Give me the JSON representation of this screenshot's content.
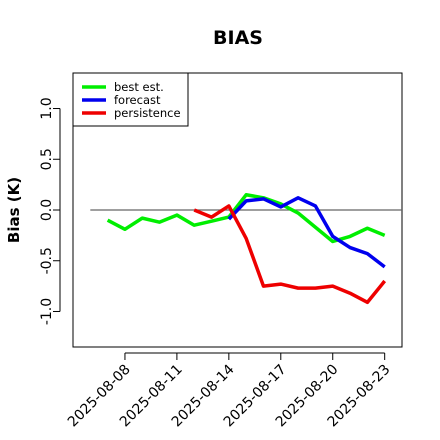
{
  "chart_data": {
    "type": "line",
    "title": "BIAS",
    "xlabel": "",
    "ylabel": "Bias (K)",
    "ylim": [
      -1.35,
      1.35
    ],
    "xlim": [
      "2025-08-05",
      "2025-08-24"
    ],
    "grid": false,
    "legend_position": "top-left",
    "zero_line": true,
    "y_ticks": [
      "-1.0",
      "-0.5",
      "0.0",
      "0.5",
      "1.0"
    ],
    "y_tick_values": [
      -1.0,
      -0.5,
      0.0,
      0.5,
      1.0
    ],
    "x_ticks": [
      "2025-08-08",
      "2025-08-11",
      "2025-08-14",
      "2025-08-17",
      "2025-08-20",
      "2025-08-23"
    ],
    "highlighted_x_tick": "2025-08-14",
    "highlight_color": "#228B22",
    "series": [
      {
        "name": "best est.",
        "color": "#00ee00",
        "points": [
          [
            "2025-08-07",
            -0.1
          ],
          [
            "2025-08-08",
            -0.19
          ],
          [
            "2025-08-09",
            -0.08
          ],
          [
            "2025-08-10",
            -0.12
          ],
          [
            "2025-08-11",
            -0.05
          ],
          [
            "2025-08-12",
            -0.15
          ],
          [
            "2025-08-13",
            -0.11
          ],
          [
            "2025-08-14",
            -0.07
          ],
          [
            "2025-08-15",
            0.15
          ],
          [
            "2025-08-16",
            0.12
          ],
          [
            "2025-08-17",
            0.06
          ],
          [
            "2025-08-18",
            -0.03
          ],
          [
            "2025-08-19",
            -0.17
          ],
          [
            "2025-08-20",
            -0.31
          ],
          [
            "2025-08-21",
            -0.26
          ],
          [
            "2025-08-22",
            -0.18
          ],
          [
            "2025-08-23",
            -0.25
          ]
        ]
      },
      {
        "name": "forecast",
        "color": "#0000ee",
        "points": [
          [
            "2025-08-14",
            -0.09
          ],
          [
            "2025-08-15",
            0.09
          ],
          [
            "2025-08-16",
            0.11
          ],
          [
            "2025-08-17",
            0.03
          ],
          [
            "2025-08-18",
            0.12
          ],
          [
            "2025-08-19",
            0.04
          ],
          [
            "2025-08-20",
            -0.26
          ],
          [
            "2025-08-21",
            -0.37
          ],
          [
            "2025-08-22",
            -0.43
          ],
          [
            "2025-08-23",
            -0.56
          ]
        ]
      },
      {
        "name": "persistence",
        "color": "#ee0000",
        "points": [
          [
            "2025-08-12",
            0.0
          ],
          [
            "2025-08-13",
            -0.07
          ],
          [
            "2025-08-14",
            0.04
          ],
          [
            "2025-08-15",
            -0.28
          ],
          [
            "2025-08-16",
            -0.75
          ],
          [
            "2025-08-17",
            -0.73
          ],
          [
            "2025-08-18",
            -0.77
          ],
          [
            "2025-08-19",
            -0.77
          ],
          [
            "2025-08-20",
            -0.75
          ],
          [
            "2025-08-21",
            -0.82
          ],
          [
            "2025-08-22",
            -0.91
          ],
          [
            "2025-08-23",
            -0.7
          ]
        ]
      }
    ]
  }
}
